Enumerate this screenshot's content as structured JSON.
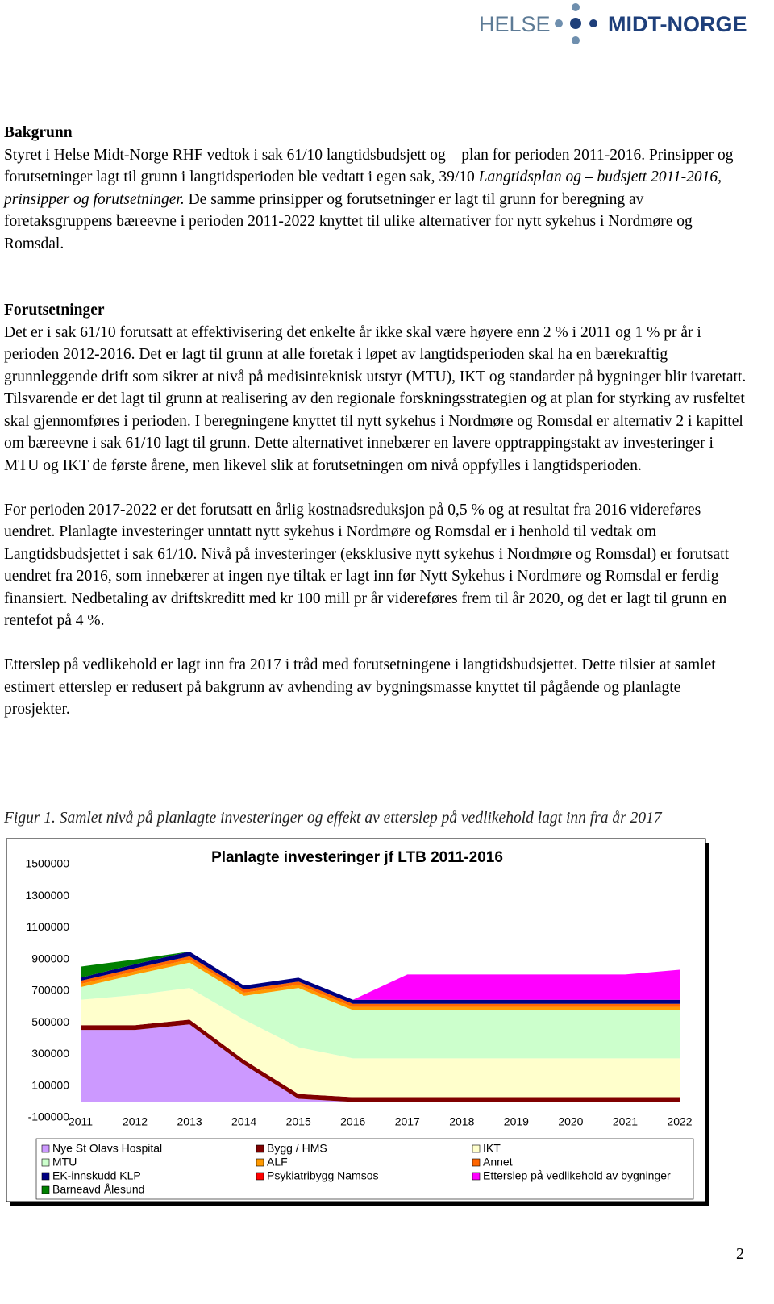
{
  "header": {
    "logo_left": "HELSE",
    "logo_right": "MIDT-NORGE"
  },
  "sections": [
    {
      "heading": "Bakgrunn",
      "paragraphs": [
        [
          "Styret i Helse Midt-Norge RHF vedtok i sak 61/10 langtidsbudsjett og – plan for perioden 2011-2016. Prinsipper og forutsetninger lagt til grunn i langtidsperioden ble vedtatt i egen sak, 39/10 ",
          "Langtidsplan og – budsjett 2011-2016, prinsipper og forutsetninger.",
          " De samme prinsipper og forutsetninger er lagt til grunn for beregning av foretaksgruppens bæreevne i perioden 2011-2022 knyttet til ulike alternativer for nytt sykehus i Nordmøre og Romsdal."
        ]
      ]
    },
    {
      "heading": "Forutsetninger",
      "paragraphs": [
        [
          "Det er i sak 61/10 forutsatt at effektivisering det enkelte år ikke skal være høyere enn 2 % i 2011 og 1 % pr år i perioden 2012-2016.  Det er lagt til grunn at alle foretak i løpet av langtidsperioden skal ha en bærekraftig grunnleggende drift som sikrer at nivå på medisinteknisk utstyr (MTU), IKT og standarder på bygninger blir ivaretatt. Tilsvarende er det lagt til grunn at realisering av den regionale forskningsstrategien og at plan for styrking av rusfeltet skal gjennomføres i perioden. I beregningene knyttet til nytt sykehus i Nordmøre og Romsdal er alternativ 2 i kapittel om bæreevne i sak 61/10 lagt til grunn. Dette alternativet innebærer en lavere opptrappingstakt av investeringer i MTU og IKT de første årene, men likevel slik at forutsetningen om nivå oppfylles i langtidsperioden."
        ],
        [
          "For perioden 2017-2022 er det forutsatt en årlig kostnadsreduksjon på 0,5 % og at resultat fra 2016 videreføres uendret. Planlagte investeringer unntatt nytt sykehus i Nordmøre og Romsdal er i henhold til vedtak om Langtidsbudsjettet i sak 61/10. Nivå på investeringer (eksklusive nytt sykehus i Nordmøre og Romsdal) er forutsatt uendret fra 2016, som innebærer at ingen nye tiltak er lagt inn før Nytt Sykehus i Nordmøre og Romsdal er ferdig finansiert. Nedbetaling av driftskreditt med kr 100 mill pr år videreføres frem til år 2020, og det er lagt til grunn en rentefot på 4 %."
        ],
        [
          "Etterslep på vedlikehold er lagt inn fra 2017 i tråd med forutsetningene i langtidsbudsjettet. Dette tilsier at samlet estimert etterslep er redusert på bakgrunn av avhending av bygningsmasse knyttet til pågående og planlagte prosjekter."
        ]
      ]
    }
  ],
  "figure_caption": "Figur 1. Samlet nivå på planlagte investeringer og effekt av etterslep på vedlikehold lagt inn fra år 2017",
  "chart_data": {
    "type": "stacked_area",
    "title": "Planlagte investeringer jf LTB 2011-2016",
    "categories": [
      "2011",
      "2012",
      "2013",
      "2014",
      "2015",
      "2016",
      "2017",
      "2018",
      "2019",
      "2020",
      "2021",
      "2022"
    ],
    "ylim": [
      -100000,
      1500000
    ],
    "yticks": [
      -100000,
      100000,
      300000,
      500000,
      700000,
      900000,
      1100000,
      1300000,
      1500000
    ],
    "series": [
      {
        "name": "Nye St Olavs Hospital",
        "color": "#cc99ff",
        "values": [
          455000,
          455000,
          490000,
          235000,
          20000,
          0,
          0,
          0,
          0,
          0,
          0,
          0
        ]
      },
      {
        "name": "Bygg / HMS",
        "color": "#800000",
        "values": [
          30000,
          30000,
          30000,
          30000,
          30000,
          30000,
          30000,
          30000,
          30000,
          30000,
          30000,
          30000
        ]
      },
      {
        "name": "IKT",
        "color": "#ffffcc",
        "values": [
          160000,
          190000,
          200000,
          255000,
          295000,
          245000,
          245000,
          245000,
          245000,
          245000,
          245000,
          245000
        ]
      },
      {
        "name": "MTU",
        "color": "#ccffcc",
        "values": [
          80000,
          130000,
          160000,
          150000,
          375000,
          305000,
          305000,
          305000,
          305000,
          305000,
          305000,
          305000
        ]
      },
      {
        "name": "ALF",
        "color": "#ff9900",
        "values": [
          20000,
          20000,
          20000,
          20000,
          20000,
          20000,
          20000,
          20000,
          20000,
          20000,
          20000,
          20000
        ]
      },
      {
        "name": "Annet",
        "color": "#ff6600",
        "values": [
          20000,
          20000,
          20000,
          20000,
          20000,
          20000,
          20000,
          20000,
          20000,
          20000,
          20000,
          20000
        ]
      },
      {
        "name": "EK-innskudd KLP",
        "color": "#000080",
        "values": [
          20000,
          25000,
          30000,
          25000,
          25000,
          25000,
          25000,
          25000,
          25000,
          25000,
          25000,
          25000
        ]
      },
      {
        "name": "Psykiatribygg Namsos",
        "color": "#ff0000",
        "values": [
          0,
          0,
          0,
          0,
          0,
          0,
          0,
          0,
          0,
          0,
          0,
          0
        ]
      },
      {
        "name": "Etterslep på vedlikehold av bygninger",
        "color": "#ff00ff",
        "values": [
          0,
          0,
          0,
          0,
          0,
          0,
          160000,
          160000,
          160000,
          160000,
          160000,
          190000
        ]
      },
      {
        "name": "Barneavd Ålesund",
        "color": "#008000",
        "values": [
          70000,
          30000,
          0,
          0,
          0,
          0,
          0,
          0,
          0,
          0,
          0,
          0
        ]
      }
    ]
  },
  "page_number": "2"
}
